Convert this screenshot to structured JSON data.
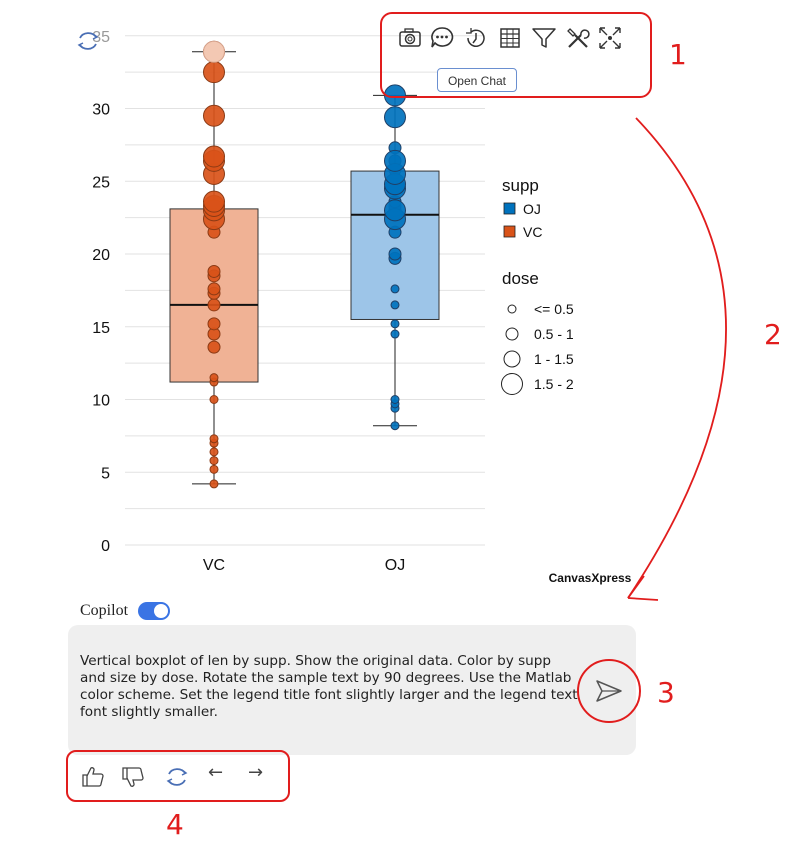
{
  "toolbar": {
    "icons": [
      "camera-icon",
      "chat-icon",
      "history-icon",
      "table-icon",
      "filter-icon",
      "tools-icon",
      "fullscreen-icon"
    ],
    "tooltip": "Open Chat"
  },
  "annotations": {
    "n1": "1",
    "n2": "2",
    "n3": "3",
    "n4": "4"
  },
  "brand": "CanvasXpress",
  "copilot": {
    "label": "Copilot",
    "enabled": true
  },
  "prompt": {
    "text": "Vertical boxplot of len by supp. Show the original data. Color by supp and size by dose. Rotate the sample text by 90 degrees. Use the Matlab color scheme. Set the legend title font slightly larger and the legend text font slightly smaller."
  },
  "feedback": {
    "prev": "←",
    "next": "→"
  },
  "chart_data": {
    "type": "boxplot",
    "categories": [
      "VC",
      "OJ"
    ],
    "yticks": [
      0,
      5,
      10,
      15,
      20,
      25,
      30
    ],
    "y_top_label": "35",
    "ylim": [
      0,
      35
    ],
    "colors": {
      "VC": "#d95319",
      "OJ": "#0072bd"
    },
    "boxes": [
      {
        "group": "VC",
        "min": 4.2,
        "q1": 11.2,
        "median": 16.5,
        "q3": 23.1,
        "max": 33.9
      },
      {
        "group": "OJ",
        "min": 8.2,
        "q1": 15.5,
        "median": 22.7,
        "q3": 25.7,
        "max": 30.9
      }
    ],
    "points": {
      "VC": [
        [
          4.2,
          0.5
        ],
        [
          5.2,
          0.5
        ],
        [
          5.8,
          0.5
        ],
        [
          6.4,
          0.5
        ],
        [
          7.0,
          0.5
        ],
        [
          7.3,
          0.5
        ],
        [
          10.0,
          0.5
        ],
        [
          11.2,
          0.5
        ],
        [
          11.5,
          0.5
        ],
        [
          13.6,
          1
        ],
        [
          14.5,
          1
        ],
        [
          15.2,
          1
        ],
        [
          16.5,
          1
        ],
        [
          17.3,
          1
        ],
        [
          17.6,
          1
        ],
        [
          18.5,
          1
        ],
        [
          18.8,
          1
        ],
        [
          21.5,
          1
        ],
        [
          22.4,
          2
        ],
        [
          23.0,
          2
        ],
        [
          23.3,
          2
        ],
        [
          23.6,
          2
        ],
        [
          25.5,
          2
        ],
        [
          26.4,
          2
        ],
        [
          26.7,
          2
        ],
        [
          29.5,
          2
        ],
        [
          32.5,
          2
        ],
        [
          33.9,
          2
        ]
      ],
      "OJ": [
        [
          8.2,
          0.5
        ],
        [
          9.4,
          0.5
        ],
        [
          9.7,
          0.5
        ],
        [
          10.0,
          0.5
        ],
        [
          14.5,
          0.5
        ],
        [
          15.2,
          0.5
        ],
        [
          16.5,
          0.5
        ],
        [
          17.6,
          0.5
        ],
        [
          19.7,
          1
        ],
        [
          20.0,
          1
        ],
        [
          21.5,
          1
        ],
        [
          23.0,
          1
        ],
        [
          23.3,
          1
        ],
        [
          23.6,
          1
        ],
        [
          25.2,
          1
        ],
        [
          25.8,
          1
        ],
        [
          26.4,
          1
        ],
        [
          27.3,
          1
        ],
        [
          22.4,
          2
        ],
        [
          23.0,
          2
        ],
        [
          24.5,
          2
        ],
        [
          24.8,
          2
        ],
        [
          25.5,
          2
        ],
        [
          26.4,
          2
        ],
        [
          29.4,
          2
        ],
        [
          30.9,
          2
        ]
      ]
    },
    "legend": {
      "color_title": "supp",
      "color_items": [
        "OJ",
        "VC"
      ],
      "size_title": "dose",
      "size_items": [
        "<= 0.5",
        "0.5 - 1",
        "1 - 1.5",
        "1.5 - 2"
      ],
      "placement": "right"
    }
  }
}
